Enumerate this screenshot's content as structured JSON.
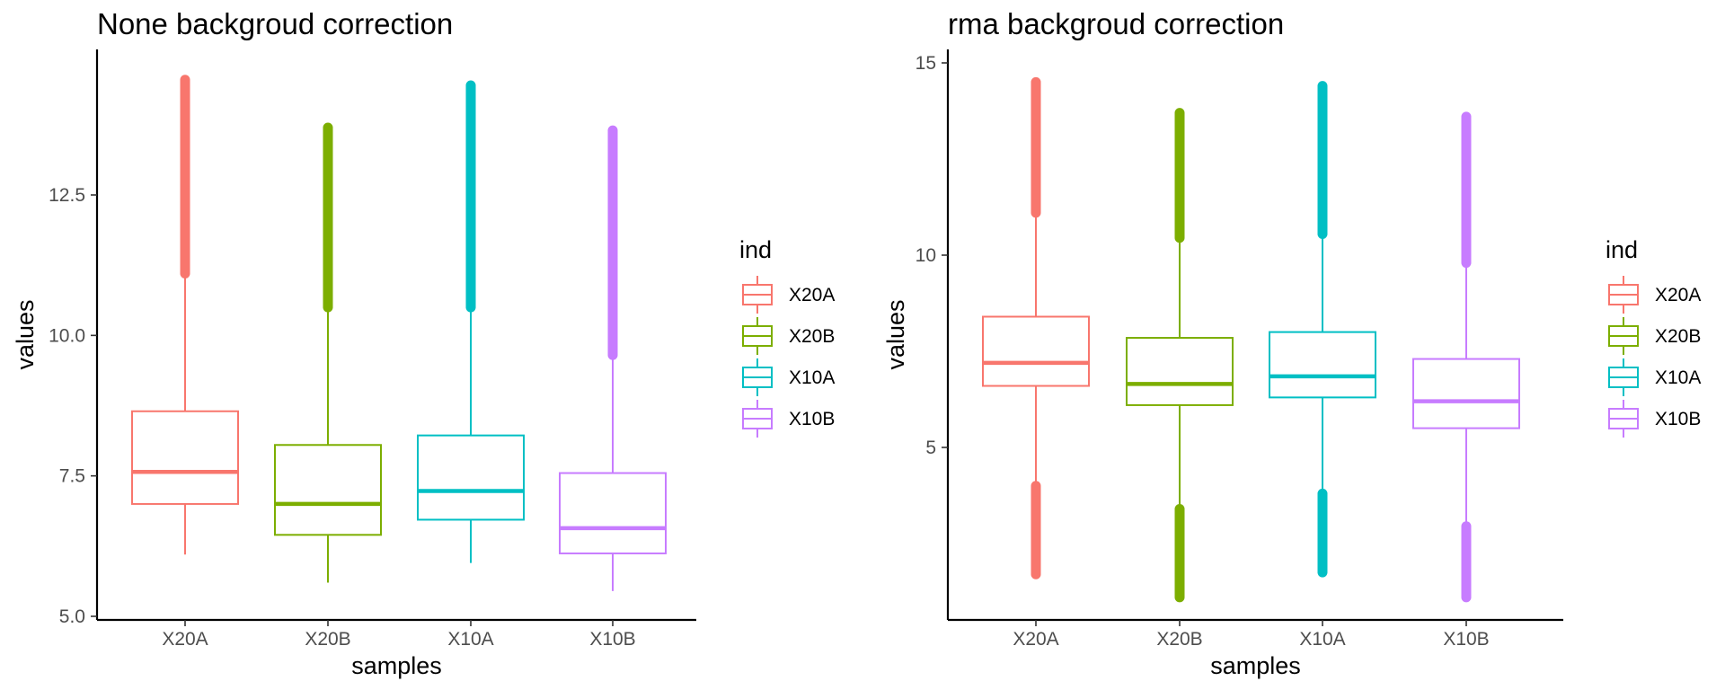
{
  "chart_data": [
    {
      "type": "boxplot",
      "title": "None backgroud correction",
      "xlabel": "samples",
      "ylabel": "values",
      "ylim": [
        4.9,
        14.8
      ],
      "yticks": [
        5.0,
        7.5,
        10.0,
        12.5
      ],
      "ytick_labels": [
        "5.0",
        "7.5",
        "10.0",
        "12.5"
      ],
      "grid": false,
      "legend_title": "ind",
      "legend_position": "right",
      "categories": [
        "X20A",
        "X20B",
        "X10A",
        "X10B"
      ],
      "colors": [
        "#F8766D",
        "#7CAE00",
        "#00BFC4",
        "#C77CFF"
      ],
      "series": [
        {
          "name": "X20A",
          "whisker_low": 6.1,
          "q1": 7.0,
          "median": 7.57,
          "q3": 8.65,
          "whisker_high": 11.1,
          "outliers_high": [
            11.1,
            14.55
          ],
          "outliers_low": null
        },
        {
          "name": "X20B",
          "whisker_low": 5.6,
          "q1": 6.45,
          "median": 7.0,
          "q3": 8.05,
          "whisker_high": 10.5,
          "outliers_high": [
            10.5,
            13.7
          ],
          "outliers_low": null
        },
        {
          "name": "X10A",
          "whisker_low": 5.95,
          "q1": 6.72,
          "median": 7.23,
          "q3": 8.22,
          "whisker_high": 10.5,
          "outliers_high": [
            10.5,
            14.45
          ],
          "outliers_low": null
        },
        {
          "name": "X10B",
          "whisker_low": 5.45,
          "q1": 6.12,
          "median": 6.57,
          "q3": 7.55,
          "whisker_high": 9.65,
          "outliers_high": [
            9.65,
            13.65
          ],
          "outliers_low": null
        }
      ]
    },
    {
      "type": "boxplot",
      "title": "rma backgroud correction",
      "xlabel": "samples",
      "ylabel": "values",
      "ylim": [
        0.4,
        15.2
      ],
      "yticks": [
        5,
        10,
        15
      ],
      "ytick_labels": [
        "5",
        "10",
        "15"
      ],
      "grid": false,
      "legend_title": "ind",
      "legend_position": "right",
      "categories": [
        "X20A",
        "X20B",
        "X10A",
        "X10B"
      ],
      "colors": [
        "#F8766D",
        "#7CAE00",
        "#00BFC4",
        "#C77CFF"
      ],
      "series": [
        {
          "name": "X20A",
          "whisker_low": 4.0,
          "q1": 6.6,
          "median": 7.2,
          "q3": 8.4,
          "whisker_high": 11.1,
          "outliers_high": [
            11.1,
            14.5
          ],
          "outliers_low": [
            1.7,
            4.0
          ]
        },
        {
          "name": "X20B",
          "whisker_low": 3.4,
          "q1": 6.1,
          "median": 6.65,
          "q3": 7.85,
          "whisker_high": 10.45,
          "outliers_high": [
            10.45,
            13.7
          ],
          "outliers_low": [
            1.1,
            3.4
          ]
        },
        {
          "name": "X10A",
          "whisker_low": 3.8,
          "q1": 6.3,
          "median": 6.85,
          "q3": 8.0,
          "whisker_high": 10.55,
          "outliers_high": [
            10.55,
            14.4
          ],
          "outliers_low": [
            1.75,
            3.8
          ]
        },
        {
          "name": "X10B",
          "whisker_low": 2.95,
          "q1": 5.5,
          "median": 6.2,
          "q3": 7.3,
          "whisker_high": 9.8,
          "outliers_high": [
            9.8,
            13.6
          ],
          "outliers_low": [
            1.1,
            2.95
          ]
        }
      ]
    }
  ]
}
